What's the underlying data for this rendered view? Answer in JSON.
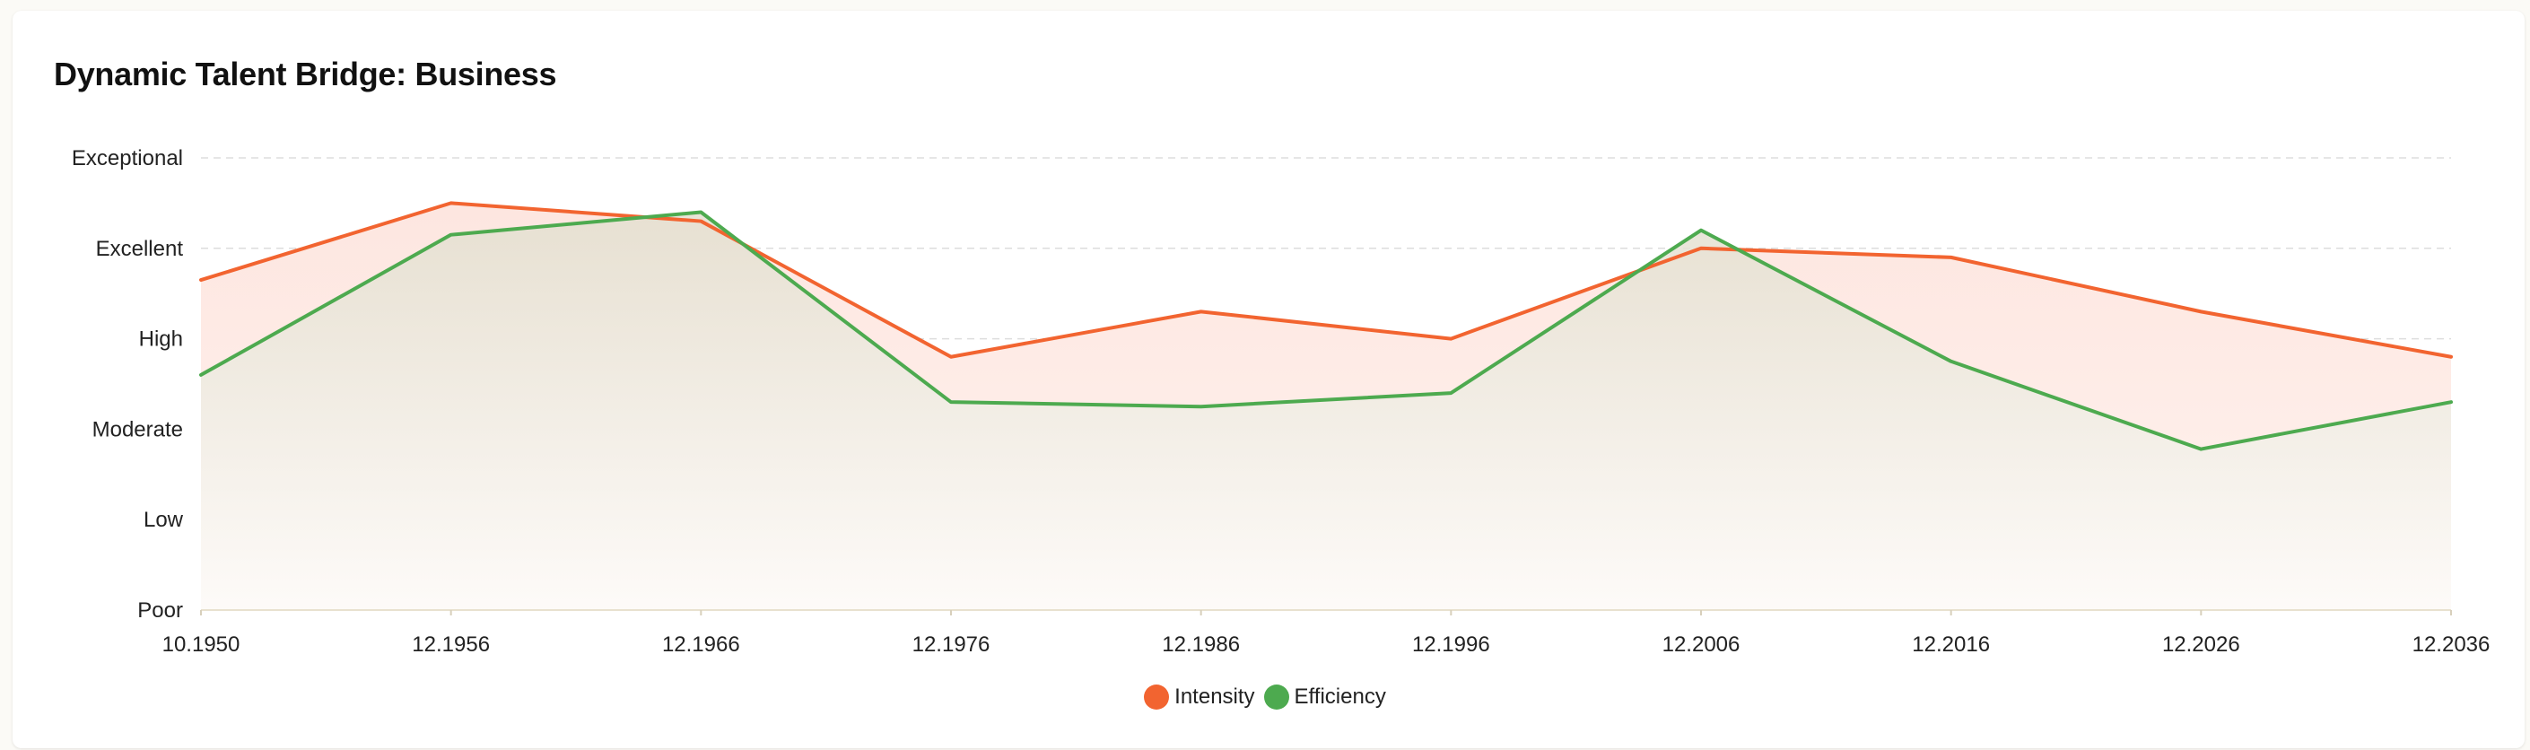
{
  "chart_data": {
    "type": "area",
    "title": "Dynamic Talent Bridge: Business",
    "x": [
      "10.1950",
      "12.1956",
      "12.1966",
      "12.1976",
      "12.1986",
      "12.1996",
      "12.2006",
      "12.2016",
      "12.2026",
      "12.2036"
    ],
    "y_levels": [
      "Poor",
      "Low",
      "Moderate",
      "High",
      "Excellent",
      "Exceptional"
    ],
    "ylim": [
      0,
      5
    ],
    "grid": true,
    "legend_position": "bottom",
    "series": [
      {
        "name": "Intensity",
        "color": "#f26430",
        "fill": "#fde9e4",
        "values": [
          3.65,
          4.5,
          4.3,
          2.8,
          3.3,
          3.0,
          4.0,
          3.9,
          3.3,
          2.8
        ]
      },
      {
        "name": "Efficiency",
        "color": "#4daa4f",
        "fill": "#e4e1d4",
        "values": [
          2.6,
          4.15,
          4.4,
          2.3,
          2.25,
          2.4,
          4.2,
          2.75,
          1.78,
          2.3
        ]
      }
    ]
  }
}
